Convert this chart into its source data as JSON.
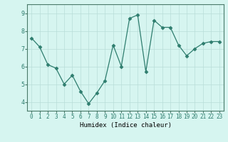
{
  "x": [
    0,
    1,
    2,
    3,
    4,
    5,
    6,
    7,
    8,
    9,
    10,
    11,
    12,
    13,
    14,
    15,
    16,
    17,
    18,
    19,
    20,
    21,
    22,
    23
  ],
  "y": [
    7.6,
    7.1,
    6.1,
    5.9,
    5.0,
    5.5,
    4.6,
    3.9,
    4.5,
    5.2,
    7.2,
    6.0,
    8.7,
    8.9,
    5.7,
    8.6,
    8.2,
    8.2,
    7.2,
    6.6,
    7.0,
    7.3,
    7.4,
    7.4
  ],
  "line_color": "#2e7d6e",
  "marker": "D",
  "marker_size": 2.5,
  "bg_color": "#d6f5f0",
  "grid_color": "#b8ddd8",
  "xlabel": "Humidex (Indice chaleur)",
  "ylim": [
    3.5,
    9.5
  ],
  "xlim": [
    -0.5,
    23.5
  ],
  "yticks": [
    4,
    5,
    6,
    7,
    8,
    9
  ],
  "xticks": [
    0,
    1,
    2,
    3,
    4,
    5,
    6,
    7,
    8,
    9,
    10,
    11,
    12,
    13,
    14,
    15,
    16,
    17,
    18,
    19,
    20,
    21,
    22,
    23
  ],
  "tick_fontsize": 5.5,
  "xlabel_fontsize": 6.5
}
